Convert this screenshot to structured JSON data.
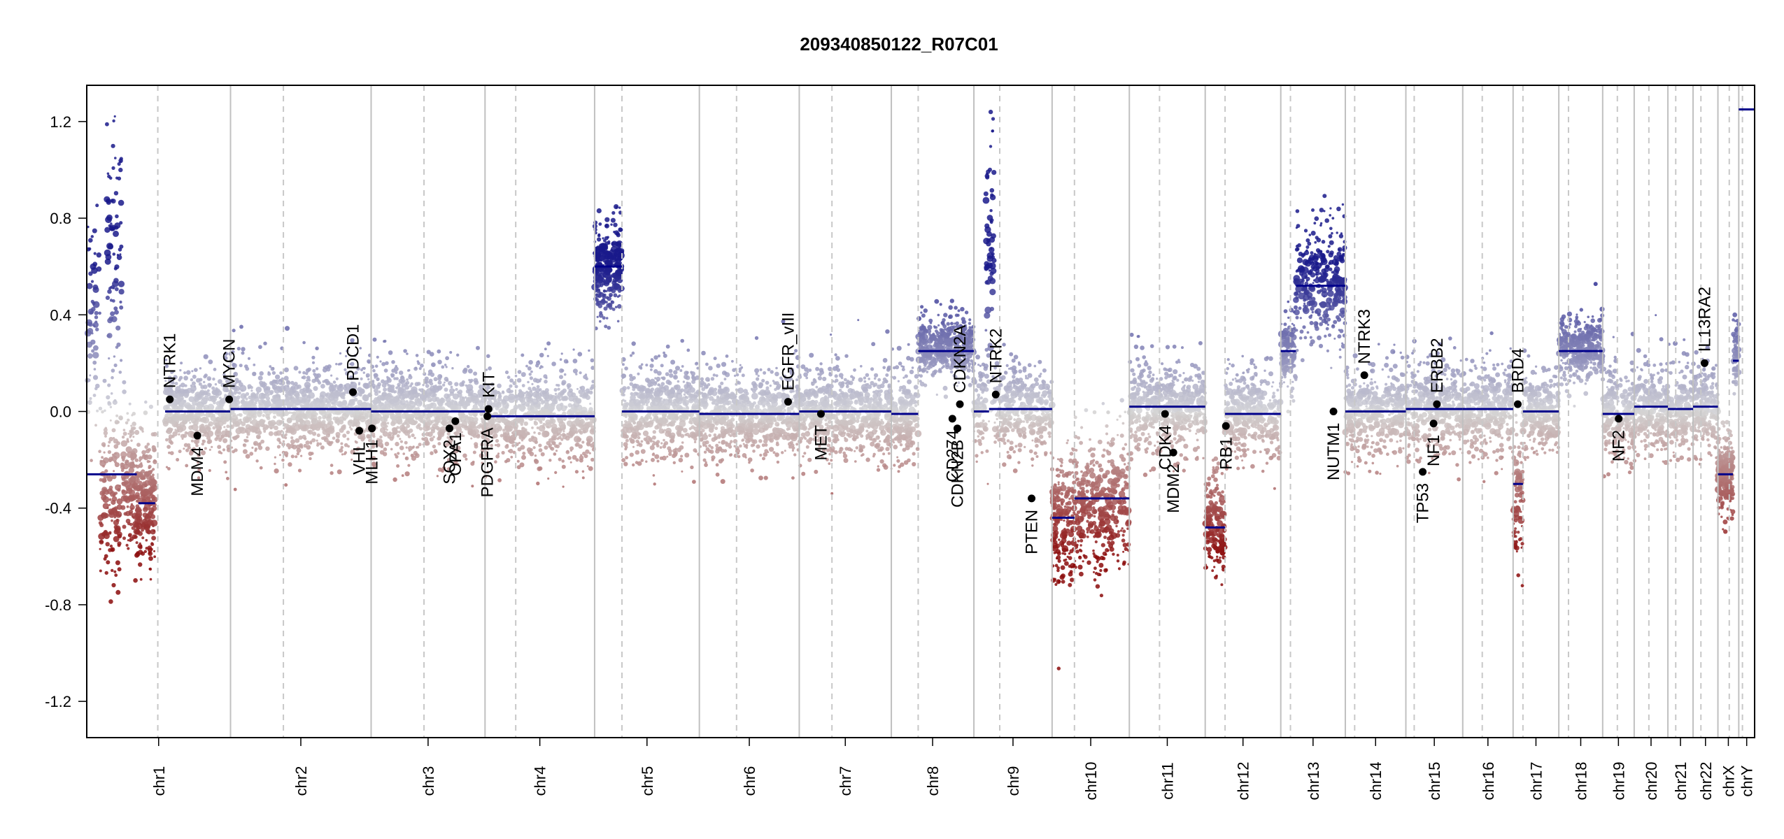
{
  "chart_data": {
    "type": "scatter",
    "title": "209340850122_R07C01",
    "xlabel": "",
    "ylabel": "",
    "ylim": [
      -1.35,
      1.35
    ],
    "yticks": [
      -1.2,
      -0.8,
      -0.4,
      0.0,
      0.4,
      0.8,
      1.2
    ],
    "ytick_labels": [
      "-1.2",
      "-0.8",
      "-0.4",
      "0.0",
      "0.4",
      "0.8",
      "1.2"
    ],
    "grid": false,
    "colors": {
      "gain": "#1f1f8f",
      "neutral": "#d3d3d3",
      "loss": "#8f1010",
      "segment": "#00008b",
      "gene_dot": "#000000",
      "chrom_line": "#bdbdbd"
    },
    "chromosomes": [
      {
        "name": "chr1",
        "start": 0.0,
        "end": 0.0862,
        "centromere": 0.0426
      },
      {
        "name": "chr2",
        "start": 0.0862,
        "end": 0.1705,
        "centromere": 0.1179
      },
      {
        "name": "chr3",
        "start": 0.1705,
        "end": 0.2388,
        "centromere": 0.2022
      },
      {
        "name": "chr4",
        "start": 0.2388,
        "end": 0.3045,
        "centromere": 0.2572
      },
      {
        "name": "chr5",
        "start": 0.3045,
        "end": 0.3673,
        "centromere": 0.3209
      },
      {
        "name": "chr6",
        "start": 0.3673,
        "end": 0.4272,
        "centromere": 0.3896
      },
      {
        "name": "chr7",
        "start": 0.4272,
        "end": 0.4824,
        "centromere": 0.4468
      },
      {
        "name": "chr8",
        "start": 0.4824,
        "end": 0.5319,
        "centromere": 0.4985
      },
      {
        "name": "chr9",
        "start": 0.5319,
        "end": 0.5788,
        "centromere": 0.5474
      },
      {
        "name": "chr10",
        "start": 0.5788,
        "end": 0.6251,
        "centromere": 0.5922
      },
      {
        "name": "chr11",
        "start": 0.6251,
        "end": 0.6706,
        "centromere": 0.6432
      },
      {
        "name": "chr12",
        "start": 0.6706,
        "end": 0.7159,
        "centromere": 0.6825
      },
      {
        "name": "chr13",
        "start": 0.7159,
        "end": 0.7546,
        "centromere": 0.7217
      },
      {
        "name": "chr14",
        "start": 0.7546,
        "end": 0.7909,
        "centromere": 0.7602
      },
      {
        "name": "chr15",
        "start": 0.7909,
        "end": 0.825,
        "centromere": 0.7959
      },
      {
        "name": "chr16",
        "start": 0.825,
        "end": 0.8552,
        "centromere": 0.8367
      },
      {
        "name": "chr17",
        "start": 0.8552,
        "end": 0.8826,
        "centromere": 0.8611
      },
      {
        "name": "chr18",
        "start": 0.8826,
        "end": 0.9089,
        "centromere": 0.8884
      },
      {
        "name": "chr19",
        "start": 0.9089,
        "end": 0.9278,
        "centromere": 0.9177
      },
      {
        "name": "chr20",
        "start": 0.9278,
        "end": 0.948,
        "centromere": 0.9366
      },
      {
        "name": "chr21",
        "start": 0.948,
        "end": 0.9631,
        "centromere": 0.9527
      },
      {
        "name": "chr22",
        "start": 0.9631,
        "end": 0.978,
        "centromere": 0.9678
      },
      {
        "name": "chrX",
        "start": 0.978,
        "end": 0.9905,
        "centromere": 0.9848
      },
      {
        "name": "chrY",
        "start": 0.9905,
        "end": 1.0,
        "centromere": 0.9927
      }
    ],
    "segments": [
      {
        "chr": "chr1",
        "from": 0.0,
        "to": 0.03,
        "y": -0.26
      },
      {
        "chr": "chr1",
        "from": 0.031,
        "to": 0.041,
        "y": -0.38
      },
      {
        "chr": "chr1",
        "from": 0.047,
        "to": 0.086,
        "y": 0.0
      },
      {
        "chr": "chr2",
        "from": 0.0862,
        "to": 0.1705,
        "y": 0.01
      },
      {
        "chr": "chr3",
        "from": 0.1705,
        "to": 0.2388,
        "y": 0.0
      },
      {
        "chr": "chr4",
        "from": 0.2388,
        "to": 0.257,
        "y": -0.02
      },
      {
        "chr": "chr4",
        "from": 0.257,
        "to": 0.3045,
        "y": -0.02
      },
      {
        "chr": "chr5",
        "from": 0.3045,
        "to": 0.3209,
        "y": 0.6
      },
      {
        "chr": "chr5",
        "from": 0.3209,
        "to": 0.3673,
        "y": 0.0
      },
      {
        "chr": "chr6",
        "from": 0.3673,
        "to": 0.4272,
        "y": -0.01
      },
      {
        "chr": "chr7",
        "from": 0.4272,
        "to": 0.4824,
        "y": 0.0
      },
      {
        "chr": "chr8",
        "from": 0.4824,
        "to": 0.4985,
        "y": -0.01
      },
      {
        "chr": "chr8",
        "from": 0.4985,
        "to": 0.5319,
        "y": 0.25
      },
      {
        "chr": "chr9",
        "from": 0.5319,
        "to": 0.541,
        "y": 0.0
      },
      {
        "chr": "chr9",
        "from": 0.541,
        "to": 0.5788,
        "y": 0.01
      },
      {
        "chr": "chr10",
        "from": 0.5788,
        "to": 0.5922,
        "y": -0.44
      },
      {
        "chr": "chr10",
        "from": 0.5922,
        "to": 0.6251,
        "y": -0.36
      },
      {
        "chr": "chr11",
        "from": 0.6251,
        "to": 0.6706,
        "y": 0.02
      },
      {
        "chr": "chr12",
        "from": 0.6706,
        "to": 0.6825,
        "y": -0.48
      },
      {
        "chr": "chr12",
        "from": 0.6825,
        "to": 0.7159,
        "y": -0.01
      },
      {
        "chr": "chr13",
        "from": 0.7159,
        "to": 0.725,
        "y": 0.25
      },
      {
        "chr": "chr13",
        "from": 0.725,
        "to": 0.7546,
        "y": 0.52
      },
      {
        "chr": "chr14",
        "from": 0.7546,
        "to": 0.7909,
        "y": 0.0
      },
      {
        "chr": "chr15",
        "from": 0.7909,
        "to": 0.825,
        "y": 0.01
      },
      {
        "chr": "chr16",
        "from": 0.825,
        "to": 0.8552,
        "y": 0.01
      },
      {
        "chr": "chr17",
        "from": 0.8552,
        "to": 0.8611,
        "y": -0.3
      },
      {
        "chr": "chr17",
        "from": 0.8611,
        "to": 0.8826,
        "y": 0.0
      },
      {
        "chr": "chr18",
        "from": 0.8826,
        "to": 0.9089,
        "y": 0.25
      },
      {
        "chr": "chr19",
        "from": 0.9089,
        "to": 0.9278,
        "y": -0.01
      },
      {
        "chr": "chr20",
        "from": 0.9278,
        "to": 0.948,
        "y": 0.02
      },
      {
        "chr": "chr21",
        "from": 0.948,
        "to": 0.9631,
        "y": 0.01
      },
      {
        "chr": "chr22",
        "from": 0.9631,
        "to": 0.978,
        "y": 0.02
      },
      {
        "chr": "chrX",
        "from": 0.978,
        "to": 0.987,
        "y": -0.26
      },
      {
        "chr": "chrX",
        "from": 0.987,
        "to": 0.9905,
        "y": 0.21
      },
      {
        "chr": "chrY",
        "from": 0.9905,
        "to": 1.0,
        "y": 1.25
      }
    ],
    "genes": [
      {
        "name": "NTRK1",
        "x": 0.0498,
        "y": 0.05,
        "label_side": "up"
      },
      {
        "name": "MDM4",
        "x": 0.0663,
        "y": -0.1,
        "label_side": "down"
      },
      {
        "name": "MYCN",
        "x": 0.0854,
        "y": 0.05,
        "label_side": "up"
      },
      {
        "name": "PDCD1",
        "x": 0.1596,
        "y": 0.08,
        "label_side": "up"
      },
      {
        "name": "VHL",
        "x": 0.1634,
        "y": -0.08,
        "label_side": "down"
      },
      {
        "name": "MLH1",
        "x": 0.171,
        "y": -0.07,
        "label_side": "down"
      },
      {
        "name": "SOX2",
        "x": 0.2175,
        "y": -0.07,
        "label_side": "down"
      },
      {
        "name": "OPA1",
        "x": 0.221,
        "y": -0.04,
        "label_side": "down"
      },
      {
        "name": "KIT",
        "x": 0.2409,
        "y": 0.01,
        "label_side": "up"
      },
      {
        "name": "PDGFRA",
        "x": 0.2402,
        "y": -0.02,
        "label_side": "down"
      },
      {
        "name": "EGFR_vIII",
        "x": 0.4205,
        "y": 0.04,
        "label_side": "up"
      },
      {
        "name": "MET",
        "x": 0.4402,
        "y": -0.01,
        "label_side": "down"
      },
      {
        "name": "CD274",
        "x": 0.519,
        "y": -0.03,
        "label_side": "down"
      },
      {
        "name": "CDKN2B",
        "x": 0.522,
        "y": -0.07,
        "label_side": "down"
      },
      {
        "name": "CDKN2A",
        "x": 0.5235,
        "y": 0.03,
        "label_side": "up"
      },
      {
        "name": "NTRK2",
        "x": 0.545,
        "y": 0.07,
        "label_side": "up"
      },
      {
        "name": "PTEN",
        "x": 0.5665,
        "y": -0.36,
        "label_side": "down"
      },
      {
        "name": "CDK4",
        "x": 0.6465,
        "y": -0.01,
        "label_side": "down"
      },
      {
        "name": "MDM2",
        "x": 0.6515,
        "y": -0.17,
        "label_side": "down"
      },
      {
        "name": "RB1",
        "x": 0.683,
        "y": -0.06,
        "label_side": "down"
      },
      {
        "name": "NTRK3",
        "x": 0.766,
        "y": 0.15,
        "label_side": "up"
      },
      {
        "name": "NUTM1",
        "x": 0.7475,
        "y": 0.0,
        "label_side": "down"
      },
      {
        "name": "TP53",
        "x": 0.801,
        "y": -0.25,
        "label_side": "down"
      },
      {
        "name": "NF1",
        "x": 0.8075,
        "y": -0.05,
        "label_side": "down"
      },
      {
        "name": "ERBB2",
        "x": 0.8095,
        "y": 0.03,
        "label_side": "up"
      },
      {
        "name": "BRD4",
        "x": 0.858,
        "y": 0.03,
        "label_side": "up"
      },
      {
        "name": "NF2",
        "x": 0.9185,
        "y": -0.03,
        "label_side": "down"
      },
      {
        "name": "IL13RA2",
        "x": 0.97,
        "y": 0.2,
        "label_side": "up"
      }
    ],
    "profile": {
      "note_free": true,
      "regions": [
        {
          "from": 0.0,
          "to": 0.008,
          "mean": 0.4,
          "sd": 0.25,
          "n": 60
        },
        {
          "from": 0.008,
          "to": 0.02,
          "mean": -0.35,
          "sd": 0.18,
          "n": 140
        },
        {
          "from": 0.012,
          "to": 0.021,
          "mean": 0.6,
          "sd": 0.3,
          "n": 90
        },
        {
          "from": 0.021,
          "to": 0.029,
          "mean": -0.28,
          "sd": 0.15,
          "n": 120
        },
        {
          "from": 0.029,
          "to": 0.041,
          "mean": -0.38,
          "sd": 0.15,
          "n": 220
        },
        {
          "from": 0.047,
          "to": 0.0862,
          "mean": 0.0,
          "sd": 0.1,
          "n": 420
        },
        {
          "from": 0.0862,
          "to": 0.1705,
          "mean": 0.01,
          "sd": 0.1,
          "n": 900
        },
        {
          "from": 0.1705,
          "to": 0.2388,
          "mean": 0.0,
          "sd": 0.1,
          "n": 750
        },
        {
          "from": 0.2388,
          "to": 0.3045,
          "mean": -0.02,
          "sd": 0.1,
          "n": 650
        },
        {
          "from": 0.3045,
          "to": 0.3209,
          "mean": 0.6,
          "sd": 0.1,
          "n": 300
        },
        {
          "from": 0.3209,
          "to": 0.3673,
          "mean": 0.0,
          "sd": 0.1,
          "n": 520
        },
        {
          "from": 0.3673,
          "to": 0.4272,
          "mean": -0.01,
          "sd": 0.1,
          "n": 650
        },
        {
          "from": 0.4272,
          "to": 0.4824,
          "mean": 0.0,
          "sd": 0.1,
          "n": 600
        },
        {
          "from": 0.4824,
          "to": 0.4985,
          "mean": -0.01,
          "sd": 0.1,
          "n": 180
        },
        {
          "from": 0.4985,
          "to": 0.5319,
          "mean": 0.26,
          "sd": 0.07,
          "n": 400
        },
        {
          "from": 0.5319,
          "to": 0.539,
          "mean": 0.0,
          "sd": 0.1,
          "n": 80
        },
        {
          "from": 0.539,
          "to": 0.544,
          "mean": 0.55,
          "sd": 0.35,
          "n": 70
        },
        {
          "from": 0.544,
          "to": 0.5788,
          "mean": 0.01,
          "sd": 0.1,
          "n": 350
        },
        {
          "from": 0.5788,
          "to": 0.5922,
          "mean": -0.44,
          "sd": 0.13,
          "n": 200
        },
        {
          "from": 0.5922,
          "to": 0.6251,
          "mean": -0.38,
          "sd": 0.15,
          "n": 380
        },
        {
          "from": 0.6251,
          "to": 0.6706,
          "mean": 0.02,
          "sd": 0.1,
          "n": 480
        },
        {
          "from": 0.6706,
          "to": 0.6825,
          "mean": -0.48,
          "sd": 0.12,
          "n": 160
        },
        {
          "from": 0.6825,
          "to": 0.7159,
          "mean": -0.01,
          "sd": 0.1,
          "n": 340
        },
        {
          "from": 0.7159,
          "to": 0.725,
          "mean": 0.25,
          "sd": 0.09,
          "n": 120
        },
        {
          "from": 0.725,
          "to": 0.7546,
          "mean": 0.53,
          "sd": 0.12,
          "n": 330
        },
        {
          "from": 0.7546,
          "to": 0.7909,
          "mean": 0.0,
          "sd": 0.1,
          "n": 380
        },
        {
          "from": 0.7909,
          "to": 0.825,
          "mean": 0.01,
          "sd": 0.1,
          "n": 360
        },
        {
          "from": 0.825,
          "to": 0.8552,
          "mean": 0.01,
          "sd": 0.1,
          "n": 300
        },
        {
          "from": 0.8552,
          "to": 0.8611,
          "mean": -0.35,
          "sd": 0.14,
          "n": 80
        },
        {
          "from": 0.8611,
          "to": 0.8826,
          "mean": 0.0,
          "sd": 0.1,
          "n": 250
        },
        {
          "from": 0.8826,
          "to": 0.9089,
          "mean": 0.26,
          "sd": 0.07,
          "n": 320
        },
        {
          "from": 0.9089,
          "to": 0.9278,
          "mean": -0.01,
          "sd": 0.1,
          "n": 220
        },
        {
          "from": 0.9278,
          "to": 0.948,
          "mean": 0.02,
          "sd": 0.1,
          "n": 240
        },
        {
          "from": 0.948,
          "to": 0.9631,
          "mean": 0.01,
          "sd": 0.1,
          "n": 150
        },
        {
          "from": 0.9631,
          "to": 0.978,
          "mean": 0.02,
          "sd": 0.1,
          "n": 180
        },
        {
          "from": 0.978,
          "to": 0.987,
          "mean": -0.27,
          "sd": 0.08,
          "n": 260
        },
        {
          "from": 0.987,
          "to": 0.9905,
          "mean": 0.22,
          "sd": 0.08,
          "n": 60
        }
      ]
    }
  }
}
